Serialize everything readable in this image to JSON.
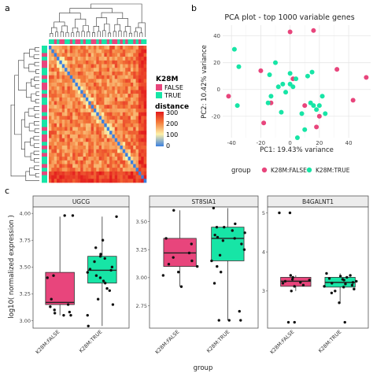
{
  "panel_labels": {
    "a": "a",
    "b": "b",
    "c": "c"
  },
  "colors": {
    "false_group": "#e8457c",
    "true_group": "#17e5a6",
    "heat_low": "#3a7fe0",
    "heat_mid": "#fdf1a8",
    "heat_high": "#e31a1c",
    "strip_bg": "#ececec",
    "panel_border": "#555555",
    "pca_grid": "#e6e6e6"
  },
  "heatmap": {
    "legend_group_title": "K28M",
    "legend_group_items": [
      "FALSE",
      "TRUE"
    ],
    "legend_distance_title": "distance",
    "legend_distance_ticks": [
      "300",
      "200",
      "100",
      "0"
    ]
  },
  "pca": {
    "title": "PCA plot - top 1000 variable genes",
    "xlabel": "PC1: 19.43% variance",
    "ylabel": "PC2: 10.42% variance",
    "x_ticks": [
      "-40",
      "-20",
      "0",
      "20",
      "40"
    ],
    "y_ticks": [
      "40",
      "20",
      "0",
      "-20"
    ],
    "legend_title": "group",
    "legend_items": [
      "K28M:FALSE",
      "K28M:TRUE"
    ]
  },
  "boxplots": {
    "ylabel": "log10( normalized expression )",
    "xlabel": "group",
    "category_labels": [
      "K28M:FALSE",
      "K28M:TRUE"
    ],
    "genes": [
      "UGCG",
      "ST8SIA1",
      "B4GALNT1"
    ],
    "y_ticks": [
      [
        "4.00",
        "3.75",
        "3.50",
        "3.25",
        "3.00"
      ],
      [
        "3.50",
        "3.25",
        "3.00",
        "2.75"
      ],
      [
        "5",
        "4",
        "3"
      ]
    ]
  },
  "chart_data": [
    {
      "type": "heatmap",
      "title": "",
      "legend": "K28M",
      "color_scale_label": "distance",
      "color_scale_range": [
        0,
        300
      ],
      "groups": {
        "FALSE": 17,
        "TRUE": 20
      },
      "note": ""
    },
    {
      "type": "scatter",
      "title": "PCA plot - top 1000 variable genes",
      "xlabel": "PC1: 19.43% variance",
      "ylabel": "PC2: 10.42% variance",
      "xlim": [
        -46,
        55
      ],
      "ylim": [
        -36,
        48
      ],
      "grid": true,
      "legend_position": "bottom",
      "series": [
        {
          "name": "K28M:FALSE",
          "x": [
            -42,
            -20,
            0,
            2,
            10,
            16,
            20,
            32,
            43,
            52,
            -13,
            -18,
            18
          ],
          "y": [
            -5,
            14,
            43,
            8,
            -12,
            44,
            -20,
            15,
            -8,
            9,
            -10,
            -25,
            -28
          ]
        },
        {
          "name": "K28M:TRUE",
          "x": [
            -38,
            -35,
            -36,
            -15,
            -14,
            -13,
            -10,
            -8,
            -6,
            -5,
            -3,
            0,
            0,
            2,
            4,
            8,
            10,
            12,
            14,
            15,
            16,
            18,
            20,
            22,
            24,
            5
          ],
          "y": [
            30,
            17,
            -12,
            -10,
            11,
            -5,
            20,
            2,
            -17,
            4,
            -2,
            12,
            4,
            2,
            8,
            -18,
            -30,
            10,
            -10,
            13,
            -12,
            -15,
            -12,
            -5,
            -18,
            -36
          ]
        }
      ]
    },
    {
      "type": "box",
      "title": "UGCG",
      "xlabel": "group",
      "ylabel": "log10( normalized expression )",
      "ylim": [
        2.93,
        4.06
      ],
      "categories": [
        "K28M:FALSE",
        "K28M:TRUE"
      ],
      "boxes": [
        {
          "whisker_low": 3.05,
          "q1": 3.15,
          "median": 3.17,
          "q3": 3.45,
          "whisker_high": 3.97,
          "points": [
            3.98,
            3.98,
            3.42,
            3.4,
            3.2,
            3.15,
            3.13,
            3.1,
            3.08,
            3.07,
            3.05,
            3.05
          ]
        },
        {
          "whisker_low": 2.95,
          "q1": 3.35,
          "median": 3.47,
          "q3": 3.6,
          "whisker_high": 3.97,
          "points": [
            3.97,
            3.75,
            3.68,
            3.62,
            3.6,
            3.58,
            3.55,
            3.5,
            3.48,
            3.47,
            3.45,
            3.42,
            3.4,
            3.37,
            3.35,
            3.3,
            3.28,
            3.2,
            3.15,
            3.05,
            2.95
          ]
        }
      ]
    },
    {
      "type": "box",
      "title": "ST8SIA1",
      "xlabel": "group",
      "ylabel": "log10( normalized expression )",
      "ylim": [
        2.55,
        3.63
      ],
      "categories": [
        "K28M:FALSE",
        "K28M:TRUE"
      ],
      "boxes": [
        {
          "whisker_low": 2.92,
          "q1": 3.1,
          "median": 3.22,
          "q3": 3.35,
          "whisker_high": 3.6,
          "points": [
            3.6,
            3.35,
            3.3,
            3.22,
            3.18,
            3.15,
            3.12,
            3.1,
            3.05,
            3.02,
            2.92
          ]
        },
        {
          "whisker_low": 2.62,
          "q1": 3.15,
          "median": 3.35,
          "q3": 3.45,
          "whisker_high": 3.62,
          "points": [
            3.62,
            3.48,
            3.45,
            3.45,
            3.42,
            3.4,
            3.38,
            3.36,
            3.35,
            3.33,
            3.3,
            3.25,
            3.2,
            3.15,
            3.1,
            3.05,
            2.95,
            2.7,
            2.62,
            2.62,
            2.62
          ]
        }
      ]
    },
    {
      "type": "box",
      "title": "B4GALNT1",
      "xlabel": "group",
      "ylabel": "log10( normalized expression )",
      "ylim": [
        2.05,
        5.15
      ],
      "categories": [
        "K28M:FALSE",
        "K28M:TRUE"
      ],
      "boxes": [
        {
          "whisker_low": 3.0,
          "q1": 3.12,
          "median": 3.25,
          "q3": 3.35,
          "whisker_high": 3.4,
          "points": [
            5.0,
            5.0,
            3.4,
            3.35,
            3.3,
            3.28,
            3.25,
            3.22,
            3.2,
            3.15,
            3.12,
            3.0,
            2.2,
            2.2
          ]
        },
        {
          "whisker_low": 2.7,
          "q1": 3.1,
          "median": 3.22,
          "q3": 3.35,
          "whisker_high": 3.45,
          "points": [
            3.45,
            3.4,
            3.38,
            3.35,
            3.32,
            3.3,
            3.28,
            3.25,
            3.22,
            3.2,
            3.18,
            3.15,
            3.12,
            3.1,
            3.05,
            3.0,
            2.95,
            2.7,
            2.2
          ]
        }
      ]
    }
  ]
}
